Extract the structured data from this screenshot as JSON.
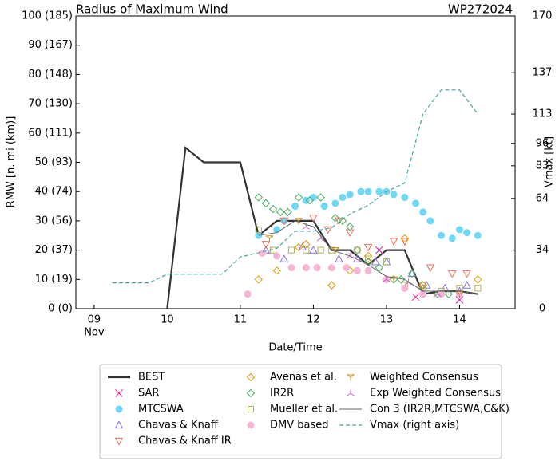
{
  "chart_data": {
    "type": "line",
    "title": "Radius of Maximum Wind",
    "storm_id": "WP272024",
    "ylabel": "RMW [n. mi (km)]",
    "y2label": "Vmax [kt]",
    "xlabel": "Date/Time",
    "xlim": [
      8.75,
      14.76
    ],
    "ylim": [
      0,
      100
    ],
    "y2lim": [
      0,
      170
    ],
    "xticks": [
      {
        "value": 9,
        "label": "09"
      },
      10,
      11,
      12,
      13,
      14
    ],
    "xtick_sublabel": "Nov",
    "yticks": [
      {
        "value": 0,
        "label": "0 (0)"
      },
      {
        "value": 10,
        "label": "10 (19)"
      },
      {
        "value": 20,
        "label": "20 (37)"
      },
      {
        "value": 30,
        "label": "30 (56)"
      },
      {
        "value": 40,
        "label": "40 (74)"
      },
      {
        "value": 50,
        "label": "50 (93)"
      },
      {
        "value": 60,
        "label": "60 (111)"
      },
      {
        "value": 70,
        "label": "70 (130)"
      },
      {
        "value": 80,
        "label": "80 (148)"
      },
      {
        "value": 90,
        "label": "90 (167)"
      },
      {
        "value": 100,
        "label": "100 (185)"
      }
    ],
    "y2ticks": [
      0,
      34,
      64,
      83,
      96,
      113,
      137,
      170
    ],
    "series": [
      {
        "name": "BEST",
        "color": "#333333",
        "marker": "line",
        "x": [
          10.0,
          10.25,
          10.5,
          11.0,
          11.25,
          11.5,
          11.75,
          12.0,
          12.25,
          12.5,
          12.75,
          13.0,
          13.25,
          13.5,
          13.75,
          14.0,
          14.25
        ],
        "values": [
          0,
          55,
          50,
          50,
          25,
          30,
          30,
          30,
          20,
          20,
          15,
          20,
          20,
          5,
          6,
          6,
          5
        ]
      },
      {
        "name": "SAR",
        "color": "#e0209a",
        "marker": "x",
        "x": [
          12.9,
          13.4,
          14.0
        ],
        "values": [
          20,
          4,
          3
        ]
      },
      {
        "name": "MTCSWA",
        "color": "#6fd8f5",
        "marker": "circle",
        "x": [
          11.25,
          11.5,
          11.6,
          11.75,
          11.9,
          12.0,
          12.15,
          12.3,
          12.4,
          12.5,
          12.65,
          12.75,
          12.9,
          13.0,
          13.1,
          13.25,
          13.4,
          13.5,
          13.6,
          13.75,
          13.9,
          14.0,
          14.1,
          14.25
        ],
        "values": [
          25,
          27,
          30,
          35,
          37,
          38,
          35,
          36,
          38,
          39,
          40,
          40,
          40,
          40,
          39,
          38,
          36,
          33,
          30,
          25,
          24,
          27,
          26,
          25
        ]
      },
      {
        "name": "Chavas & Knaff",
        "color": "#8870e0",
        "marker": "triangle",
        "x": [
          11.35,
          11.6,
          11.85,
          12.0,
          12.35,
          12.6,
          12.85,
          13.0,
          13.35,
          13.55,
          13.8,
          14.0,
          14.1
        ],
        "values": [
          20,
          17,
          21,
          20,
          17,
          17,
          16,
          16,
          12,
          8,
          7,
          6,
          8
        ]
      },
      {
        "name": "Chavas & Knaff IR",
        "color": "#e8705a",
        "marker": "triangle-down",
        "x": [
          11.35,
          11.6,
          12.0,
          12.2,
          12.35,
          12.5,
          12.75,
          13.1,
          13.25,
          13.6,
          13.9,
          14.1
        ],
        "values": [
          22,
          30,
          31,
          27,
          30,
          26,
          21,
          23,
          23,
          14,
          12,
          12
        ]
      },
      {
        "name": "Avenas et al.",
        "color": "#e69500",
        "marker": "diamond",
        "x": [
          11.25,
          11.5,
          11.8,
          11.9,
          12.25,
          12.5,
          12.75,
          13.25,
          13.5,
          14.25
        ],
        "values": [
          10,
          13,
          21,
          22,
          8,
          13,
          18,
          24,
          8,
          10
        ]
      },
      {
        "name": "IR2R",
        "color": "#44b060",
        "marker": "diamond",
        "x": [
          11.25,
          11.35,
          11.45,
          11.55,
          11.65,
          11.8,
          11.95,
          12.1,
          12.3,
          12.4,
          12.5,
          12.6,
          12.75,
          12.9,
          13.0,
          13.1,
          13.2,
          13.35,
          13.5,
          13.7,
          13.85
        ],
        "values": [
          38,
          36,
          34,
          33,
          33,
          38,
          37,
          38,
          31,
          30,
          28,
          20,
          16,
          14,
          10,
          10,
          10,
          12,
          7,
          5,
          5
        ]
      },
      {
        "name": "Mueller et al.",
        "color": "#b0b050",
        "marker": "square",
        "x": [
          11.25,
          11.45,
          11.7,
          11.9,
          12.1,
          12.25,
          12.6,
          12.75,
          13.0,
          13.25,
          13.5,
          13.75,
          14.0,
          14.25
        ],
        "values": [
          27,
          20,
          20,
          20,
          20,
          20,
          20,
          17,
          16,
          8,
          8,
          6,
          7,
          7
        ]
      },
      {
        "name": "DMV based",
        "color": "#f5b5d5",
        "marker": "circle",
        "x": [
          11.1,
          11.3,
          11.5,
          11.7,
          11.9,
          12.05,
          12.25,
          12.45,
          12.6,
          12.75,
          13.0,
          13.25,
          13.5,
          13.75,
          14.0
        ],
        "values": [
          5,
          19,
          18,
          14,
          14,
          14,
          14,
          14,
          13,
          13,
          10,
          7,
          5,
          5,
          5
        ]
      },
      {
        "name": "Weighted Consensus",
        "color": "#d09020",
        "marker": "y-tri",
        "x": [
          11.4,
          11.8,
          12.3,
          13.1,
          13.5,
          14.0
        ],
        "values": [
          24,
          30,
          20,
          10,
          7,
          5
        ]
      },
      {
        "name": "Exp Weighted Consensus",
        "color": "#d060d0",
        "marker": "tri",
        "x": [
          11.9,
          12.1,
          12.5,
          13.0,
          13.3,
          13.7
        ],
        "values": [
          28,
          24,
          18,
          10,
          9,
          5
        ]
      },
      {
        "name": "Con 3 (IR2R,MTCSWA,C&K)",
        "color": "#666666",
        "marker": "thin-line",
        "x": [
          11.25,
          11.5,
          11.75,
          12.0,
          12.25,
          12.5,
          12.75,
          13.0,
          13.25,
          13.5,
          13.75,
          14.0,
          14.25
        ],
        "values": [
          25,
          26,
          30,
          28,
          20,
          18,
          15,
          11,
          10,
          6,
          6,
          6,
          5
        ]
      },
      {
        "name": "Vmax (right axis)",
        "color": "#4aa0a0",
        "marker": "dashed",
        "axis": "y2",
        "x": [
          9.25,
          9.75,
          10.0,
          10.75,
          11.0,
          11.5,
          11.75,
          12.0,
          12.25,
          12.5,
          12.75,
          13.0,
          13.25,
          13.5,
          13.75,
          14.0,
          14.25
        ],
        "values": [
          15,
          15,
          20,
          20,
          30,
          35,
          45,
          45,
          47,
          55,
          60,
          68,
          73,
          113,
          127,
          127,
          113
        ]
      }
    ]
  }
}
